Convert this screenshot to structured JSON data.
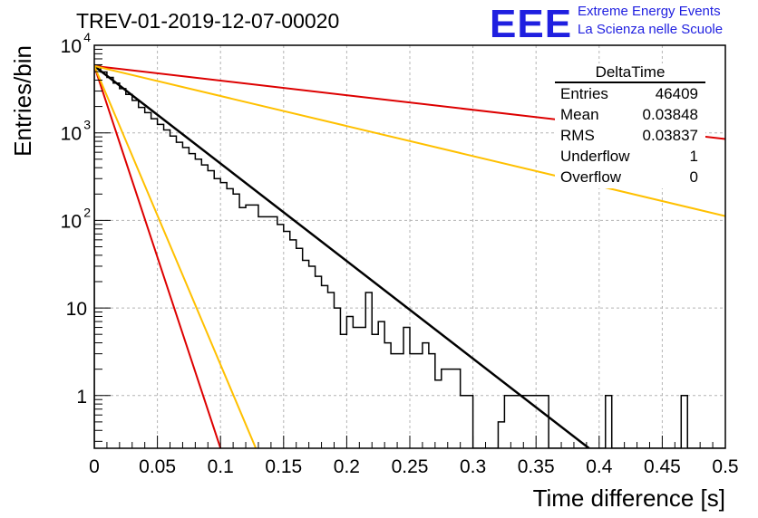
{
  "header": {
    "title": "TREV-01-2019-12-07-00020",
    "logo": "EEE",
    "logo_line1": "Extreme Energy Events",
    "logo_line2": "La Scienza nelle Scuole"
  },
  "stats": {
    "title": "DeltaTime",
    "rows": [
      {
        "label": "Entries",
        "value": "46409"
      },
      {
        "label": "Mean",
        "value": "0.03848"
      },
      {
        "label": "RMS",
        "value": "0.03837"
      },
      {
        "label": "Underflow",
        "value": "1"
      },
      {
        "label": "Overflow",
        "value": "0"
      }
    ]
  },
  "colors": {
    "histogram": "#000000",
    "fit": "#000000",
    "red": "#dd0000",
    "yellow": "#ffc000",
    "grid": "#b4b4b4"
  },
  "chart_data": {
    "type": "line",
    "xlabel": "Time difference [s]",
    "ylabel": "Entries/bin",
    "xlim": [
      0,
      0.5
    ],
    "ylim": [
      0.25,
      10000
    ],
    "yscale": "log",
    "grid": true,
    "x_ticks": [
      "0",
      "0.05",
      "0.1",
      "0.15",
      "0.2",
      "0.25",
      "0.3",
      "0.35",
      "0.4",
      "0.45",
      "0.5"
    ],
    "y_ticks": [
      {
        "value": 1,
        "label": "1"
      },
      {
        "value": 10,
        "label": "10"
      },
      {
        "value": 100,
        "label": "10^2"
      },
      {
        "value": 1000,
        "label": "10^3"
      },
      {
        "value": 10000,
        "label": "10^4"
      }
    ],
    "histogram": {
      "bin_width": 0.005,
      "counts": [
        5800,
        4950,
        4300,
        3700,
        3200,
        2750,
        2350,
        1950,
        1700,
        1450,
        1250,
        1080,
        920,
        780,
        680,
        580,
        500,
        430,
        370,
        300,
        270,
        230,
        200,
        140,
        150,
        150,
        110,
        110,
        110,
        90,
        75,
        60,
        48,
        35,
        30,
        23,
        18,
        15,
        10,
        5,
        8,
        6,
        6,
        15,
        5,
        7,
        4,
        3,
        3,
        6,
        3,
        3,
        4,
        3,
        1.5,
        2,
        2,
        2,
        1,
        1,
        0,
        0,
        0,
        0,
        0.5,
        1,
        1,
        1,
        1,
        1,
        1,
        1,
        0,
        0,
        0,
        0,
        0,
        0,
        0,
        0,
        0,
        1,
        0,
        0,
        0,
        0,
        0,
        0,
        0,
        0,
        0,
        0,
        0,
        1,
        0,
        0,
        0,
        0,
        0,
        0
      ]
    },
    "series": [
      {
        "x": [
          0,
          0.392
        ],
        "y": [
          5800,
          0.25
        ]
      },
      {
        "x": [
          0,
          0.1
        ],
        "y": [
          5800,
          0.25
        ]
      },
      {
        "x": [
          0,
          0.128
        ],
        "y": [
          5800,
          0.25
        ]
      },
      {
        "x": [
          0,
          0.5
        ],
        "y": [
          5800,
          850
        ]
      },
      {
        "x": [
          0,
          0.5
        ],
        "y": [
          5800,
          112
        ]
      }
    ]
  }
}
